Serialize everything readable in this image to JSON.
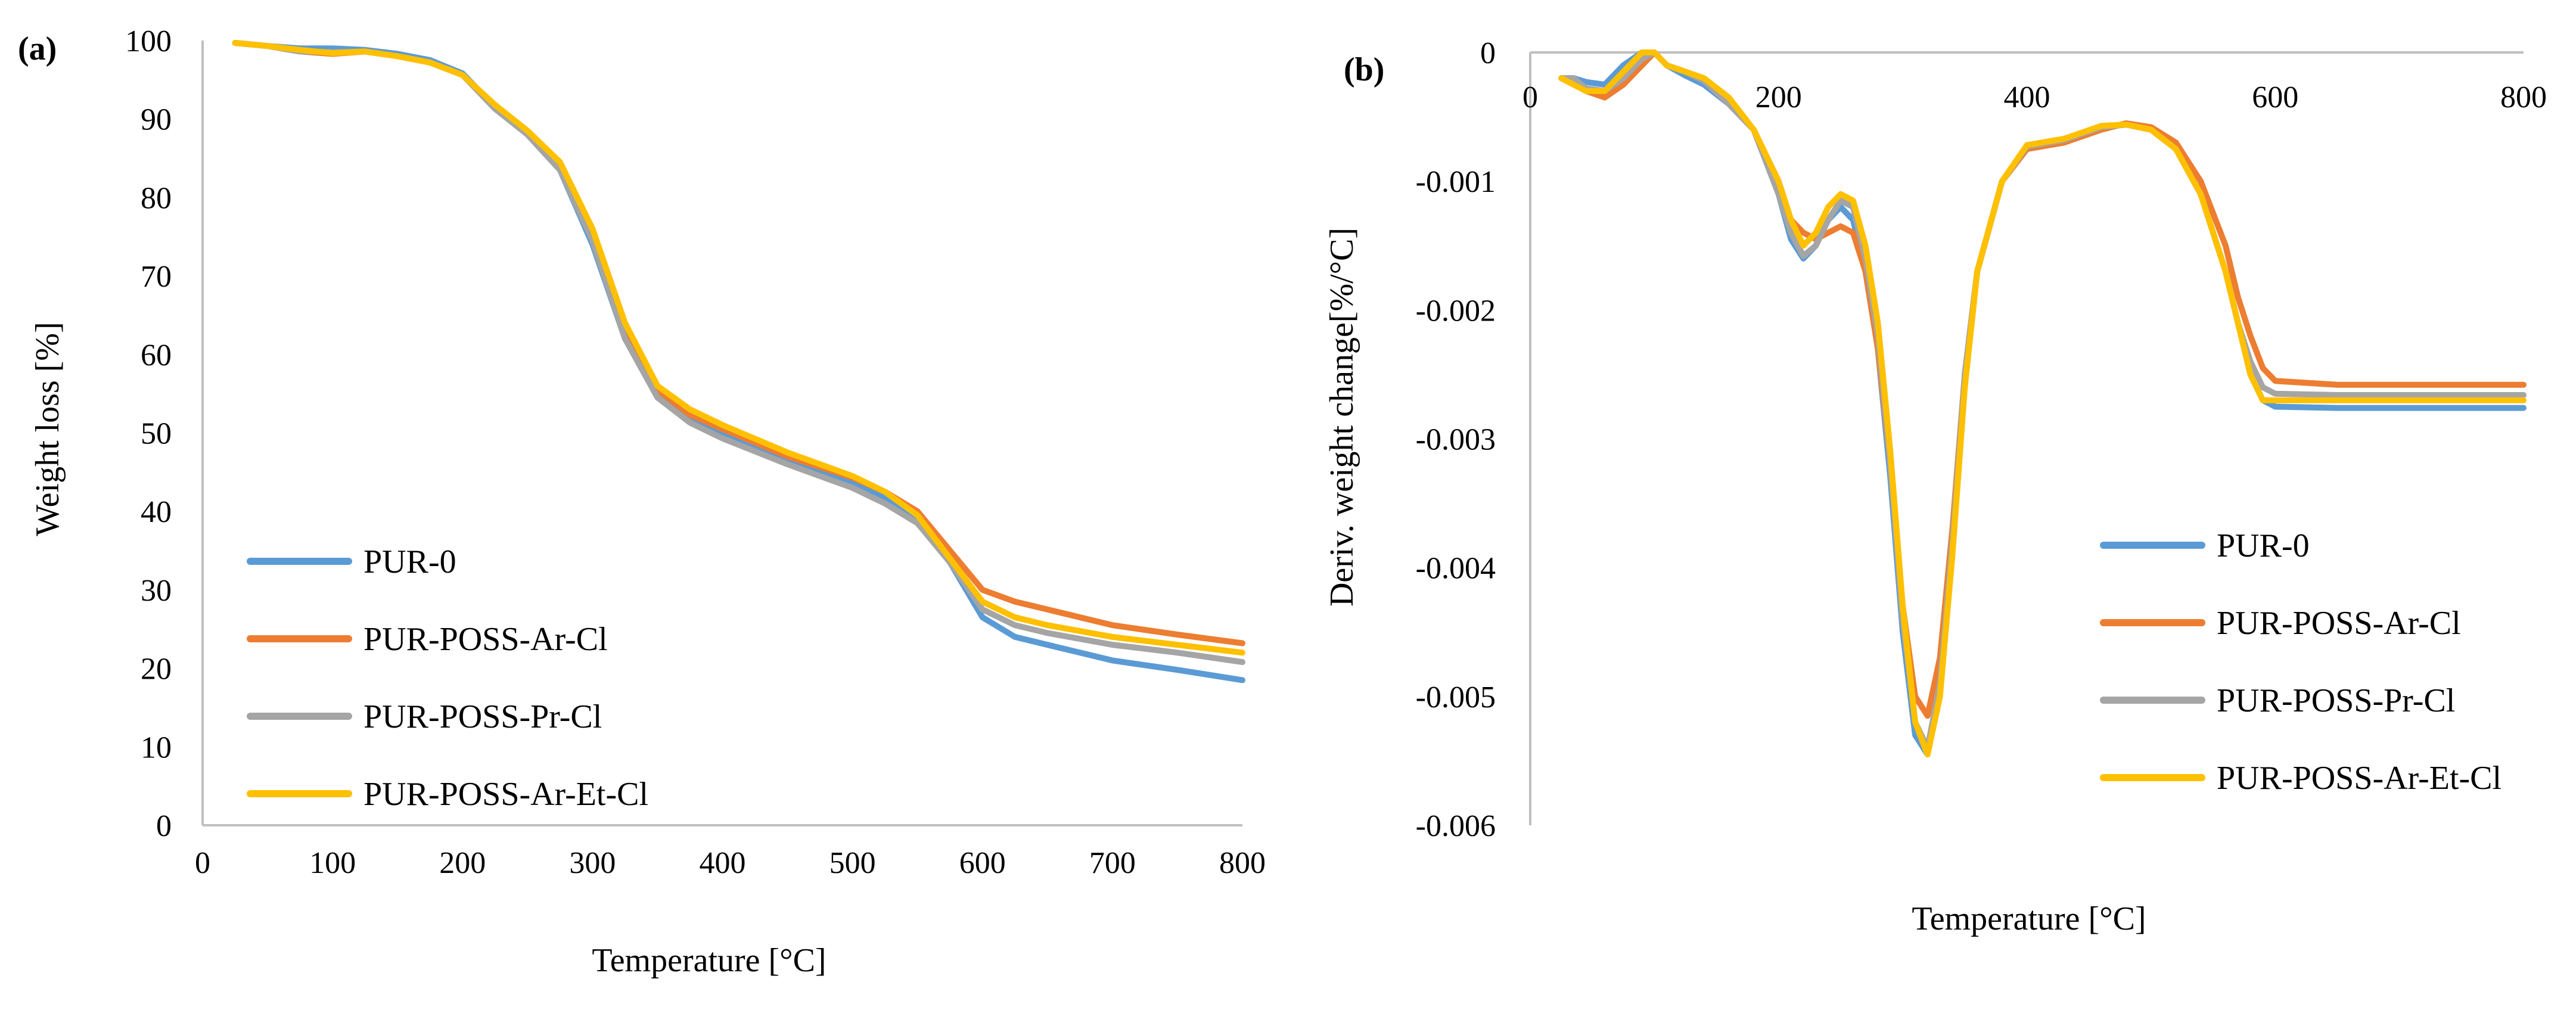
{
  "colors": {
    "PUR-0": "#5B9BD5",
    "PUR-POSS-Ar-Cl": "#ED7D31",
    "PUR-POSS-Pr-Cl": "#A5A5A5",
    "PUR-POSS-Ar-Et-Cl": "#FFC000",
    "axis": "#BFBFBF"
  },
  "chart_data": [
    {
      "panel_label": "(a)",
      "type": "line",
      "xlabel": "Temperature [°C]",
      "ylabel": "Weight loss [%]",
      "xlim": [
        0,
        800
      ],
      "ylim": [
        0,
        100
      ],
      "xticks": [
        0,
        100,
        200,
        300,
        400,
        500,
        600,
        700,
        800
      ],
      "yticks": [
        0,
        10,
        20,
        30,
        40,
        50,
        60,
        70,
        80,
        90,
        100
      ],
      "legend_position": "bottom-left",
      "legend": [
        "PUR-0",
        "PUR-POSS-Ar-Cl",
        "PUR-POSS-Pr-Cl",
        "PUR-POSS-Ar-Et-Cl"
      ],
      "x": [
        25,
        50,
        75,
        100,
        125,
        150,
        175,
        200,
        225,
        250,
        275,
        300,
        325,
        350,
        375,
        400,
        450,
        500,
        525,
        550,
        575,
        600,
        625,
        650,
        700,
        750,
        800
      ],
      "series": [
        {
          "name": "PUR-0",
          "values": [
            99.7,
            99.3,
            99.0,
            99.0,
            98.8,
            98.3,
            97.5,
            95.8,
            91.5,
            88.0,
            83.5,
            74.0,
            62.0,
            55.0,
            52.0,
            50.0,
            46.5,
            43.5,
            41.8,
            39.0,
            33.5,
            26.5,
            24.0,
            23.0,
            21.0,
            19.8,
            18.5
          ]
        },
        {
          "name": "PUR-POSS-Ar-Cl",
          "values": [
            99.7,
            99.3,
            98.6,
            98.3,
            98.6,
            98.0,
            97.2,
            95.6,
            91.5,
            88.2,
            84.0,
            75.0,
            63.0,
            55.5,
            52.3,
            50.5,
            47.0,
            44.3,
            42.5,
            40.0,
            35.0,
            30.0,
            28.5,
            27.5,
            25.5,
            24.3,
            23.2
          ]
        },
        {
          "name": "PUR-POSS-Pr-Cl",
          "values": [
            99.7,
            99.3,
            98.6,
            98.5,
            98.6,
            98.0,
            97.2,
            95.6,
            91.3,
            88.0,
            83.5,
            74.5,
            62.0,
            54.5,
            51.3,
            49.3,
            46.0,
            43.0,
            41.0,
            38.5,
            33.5,
            27.5,
            25.5,
            24.5,
            23.0,
            22.0,
            20.8
          ]
        },
        {
          "name": "PUR-POSS-Ar-Et-Cl",
          "values": [
            99.7,
            99.3,
            98.8,
            98.4,
            98.6,
            98.0,
            97.2,
            95.6,
            91.8,
            88.5,
            84.5,
            76.0,
            64.0,
            56.0,
            53.0,
            51.0,
            47.5,
            44.5,
            42.5,
            39.5,
            34.0,
            28.5,
            26.5,
            25.5,
            24.0,
            23.0,
            22.0
          ]
        }
      ]
    },
    {
      "panel_label": "(b)",
      "type": "line",
      "xlabel": "Temperature [°C]",
      "ylabel": "Deriv. weight change[%/°C]",
      "xlim": [
        0,
        800
      ],
      "ylim": [
        -0.006,
        0
      ],
      "xticks": [
        0,
        200,
        400,
        600,
        800
      ],
      "yticks": [
        0,
        -0.001,
        -0.002,
        -0.003,
        -0.004,
        -0.005,
        -0.006
      ],
      "ytick_labels": [
        "0",
        "-0.001",
        "-0.002",
        "-0.003",
        "-0.004",
        "-0.005",
        "-0.006"
      ],
      "xtick_labels": [
        "0",
        "200",
        "400",
        "600",
        "800"
      ],
      "legend_position": "bottom-right",
      "legend": [
        "PUR-0",
        "PUR-POSS-Ar-Cl",
        "PUR-POSS-Pr-Cl",
        "PUR-POSS-Ar-Et-Cl"
      ],
      "x": [
        25,
        35,
        45,
        60,
        75,
        90,
        100,
        110,
        125,
        140,
        160,
        180,
        200,
        210,
        220,
        230,
        240,
        250,
        260,
        270,
        280,
        290,
        300,
        310,
        320,
        330,
        340,
        350,
        360,
        380,
        400,
        430,
        460,
        480,
        500,
        520,
        540,
        560,
        570,
        580,
        590,
        600,
        650,
        700,
        800
      ],
      "series": [
        {
          "name": "PUR-0",
          "values": [
            -0.0002,
            -0.0002,
            -0.00023,
            -0.00025,
            -0.0001,
            0.0,
            0.0,
            -0.0001,
            -0.00018,
            -0.00025,
            -0.0004,
            -0.0006,
            -0.0011,
            -0.00145,
            -0.0016,
            -0.0015,
            -0.0013,
            -0.0012,
            -0.0013,
            -0.0017,
            -0.0023,
            -0.0033,
            -0.0045,
            -0.0053,
            -0.00545,
            -0.0049,
            -0.0038,
            -0.0025,
            -0.0017,
            -0.001,
            -0.00075,
            -0.00068,
            -0.00058,
            -0.00056,
            -0.0006,
            -0.00075,
            -0.0011,
            -0.0017,
            -0.0021,
            -0.0025,
            -0.0027,
            -0.00275,
            -0.00276,
            -0.00276,
            -0.00276
          ]
        },
        {
          "name": "PUR-POSS-Ar-Cl",
          "values": [
            -0.0002,
            -0.00025,
            -0.0003,
            -0.00035,
            -0.00025,
            -0.0001,
            0.0,
            -0.0001,
            -0.00015,
            -0.00022,
            -0.0004,
            -0.0006,
            -0.001,
            -0.0013,
            -0.0014,
            -0.00145,
            -0.0014,
            -0.00135,
            -0.0014,
            -0.0017,
            -0.0023,
            -0.0032,
            -0.0043,
            -0.005,
            -0.00515,
            -0.0047,
            -0.0037,
            -0.0025,
            -0.0017,
            -0.001,
            -0.00075,
            -0.0007,
            -0.0006,
            -0.00055,
            -0.00058,
            -0.0007,
            -0.001,
            -0.0015,
            -0.0019,
            -0.0022,
            -0.00245,
            -0.00255,
            -0.00258,
            -0.00258,
            -0.00258
          ]
        },
        {
          "name": "PUR-POSS-Pr-Cl",
          "values": [
            -0.0002,
            -0.0002,
            -0.00028,
            -0.0003,
            -0.0002,
            -5e-05,
            0.0,
            -0.0001,
            -0.00015,
            -0.00022,
            -0.0004,
            -0.0006,
            -0.0011,
            -0.0014,
            -0.00158,
            -0.0015,
            -0.0013,
            -0.00115,
            -0.0012,
            -0.0016,
            -0.0022,
            -0.0032,
            -0.0044,
            -0.0052,
            -0.0054,
            -0.0049,
            -0.0038,
            -0.0025,
            -0.0017,
            -0.001,
            -0.00073,
            -0.00068,
            -0.00058,
            -0.00056,
            -0.0006,
            -0.00075,
            -0.0011,
            -0.0017,
            -0.0021,
            -0.0024,
            -0.0026,
            -0.00265,
            -0.00266,
            -0.00266,
            -0.00266
          ]
        },
        {
          "name": "PUR-POSS-Ar-Et-Cl",
          "values": [
            -0.0002,
            -0.00025,
            -0.0003,
            -0.0003,
            -0.00015,
            0.0,
            0.0,
            -0.0001,
            -0.00015,
            -0.0002,
            -0.00035,
            -0.0006,
            -0.001,
            -0.0013,
            -0.0015,
            -0.0014,
            -0.0012,
            -0.0011,
            -0.00115,
            -0.0015,
            -0.0021,
            -0.0031,
            -0.0043,
            -0.0052,
            -0.00545,
            -0.005,
            -0.0039,
            -0.0026,
            -0.0017,
            -0.001,
            -0.00072,
            -0.00067,
            -0.00057,
            -0.00056,
            -0.0006,
            -0.00075,
            -0.0011,
            -0.0017,
            -0.0021,
            -0.0025,
            -0.0027,
            -0.0027,
            -0.0027,
            -0.0027,
            -0.0027
          ]
        }
      ]
    }
  ]
}
